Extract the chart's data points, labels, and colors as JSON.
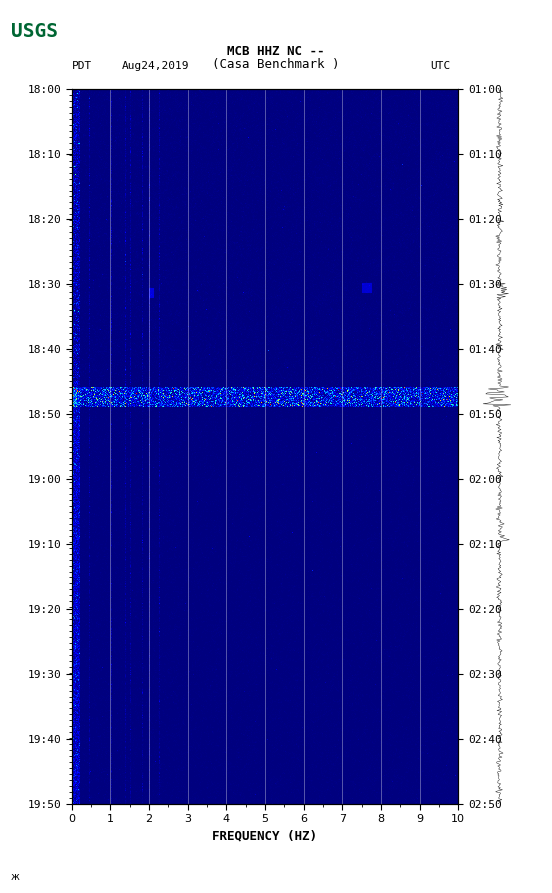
{
  "title_line1": "MCB HHZ NC --",
  "title_line2": "(Casa Benchmark )",
  "label_pdt": "PDT",
  "label_date": "Aug24,2019",
  "label_utc": "UTC",
  "time_left_labels": [
    "18:00",
    "18:10",
    "18:20",
    "18:30",
    "18:40",
    "18:50",
    "19:00",
    "19:10",
    "19:20",
    "19:30",
    "19:40",
    "19:50"
  ],
  "time_right_labels": [
    "01:00",
    "01:10",
    "01:20",
    "01:30",
    "01:40",
    "01:50",
    "02:00",
    "02:10",
    "02:20",
    "02:30",
    "02:40",
    "02:50"
  ],
  "freq_label": "FREQUENCY (HZ)",
  "freq_min": 0,
  "freq_max": 10,
  "freq_ticks": [
    0,
    1,
    2,
    3,
    4,
    5,
    6,
    7,
    8,
    9,
    10
  ],
  "n_time": 720,
  "n_freq": 400,
  "background_color": "#ffffff",
  "usgs_green": "#006633",
  "spectrogram_cmap": "jet",
  "fig_width": 5.52,
  "fig_height": 8.93
}
